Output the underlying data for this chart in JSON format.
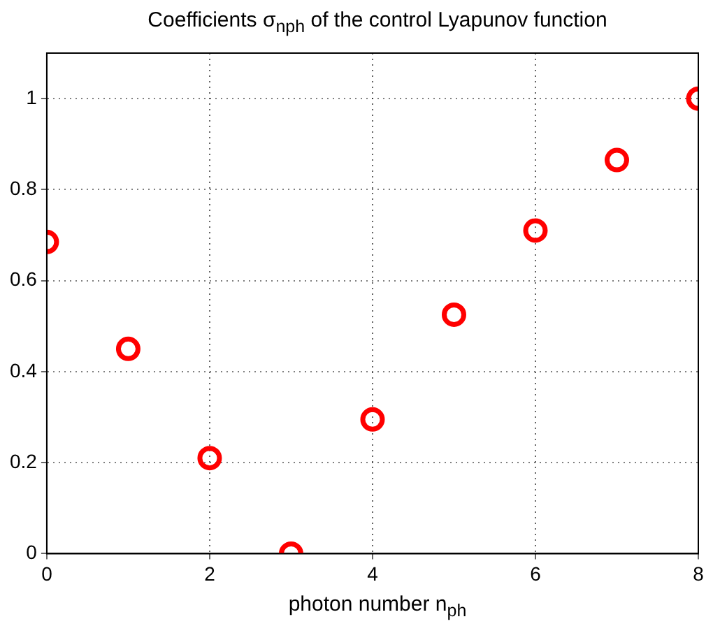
{
  "chart_data": {
    "type": "scatter",
    "title": "Coefficients σ$_{nph}$ of the control Lyapunov function",
    "xlabel": "photon number n$_{ph}$",
    "x": [
      0,
      1,
      2,
      3,
      4,
      5,
      6,
      7,
      8
    ],
    "series": [
      {
        "color": "#ff0000",
        "values": [
          0.685,
          0.45,
          0.21,
          0,
          0.295,
          0.525,
          0.71,
          0.865,
          1.0
        ]
      }
    ],
    "xlim": [
      0,
      8
    ],
    "xticks": [
      0,
      2,
      4,
      6,
      8
    ],
    "ylim": [
      0,
      1.1
    ],
    "yticks": [
      0,
      0.2,
      0.4,
      0.6,
      0.8,
      1
    ],
    "grid": true,
    "marker": "circle",
    "legend": false
  }
}
